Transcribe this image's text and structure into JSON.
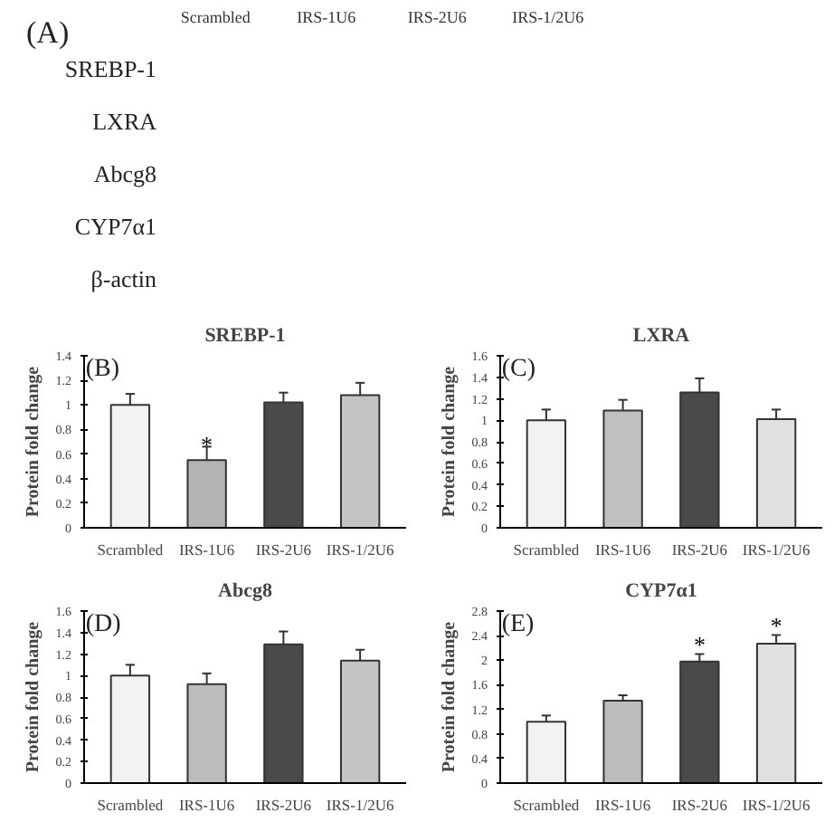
{
  "chart_data": [
    {
      "type": "other",
      "title": "(A)",
      "categories": [
        "Scrambled",
        "IRS-1U6",
        "IRS-2U6",
        "IRS-1/2U6"
      ],
      "y_categories": [
        "SREBP-1",
        "LXRA",
        "Abcg8",
        "CYP7α1",
        "β-actin"
      ]
    },
    {
      "type": "bar",
      "title": "SREBP-1",
      "annotations": [
        "(B)",
        {
          "text": "*",
          "x": "IRS-1U6",
          "y": 0.68
        }
      ],
      "ylabel": "Protein fold change",
      "categories": [
        "Scrambled",
        "IRS-1U6",
        "IRS-2U6",
        "IRS-1/2U6"
      ],
      "values": [
        1.0,
        0.55,
        1.02,
        1.08
      ],
      "errors": [
        [
          1.0,
          1.09
        ],
        [
          0.55,
          0.66
        ],
        [
          1.02,
          1.1
        ],
        [
          1.08,
          1.18
        ]
      ],
      "colors": [
        "#f2f2f2",
        "#b4b4b4",
        "#4a4a4a",
        "#c4c4c4"
      ],
      "ylim": [
        0,
        1.4
      ],
      "yticks": [
        0,
        0.2,
        0.4,
        0.6,
        0.8,
        1,
        1.2,
        1.4
      ],
      "grid": false,
      "legend": false
    },
    {
      "type": "bar",
      "title": "LXRA",
      "annotations": [
        "(C)"
      ],
      "ylabel": "Protein fold change",
      "categories": [
        "Scrambled",
        "IRS-1U6",
        "IRS-2U6",
        "IRS-1/2U6"
      ],
      "values": [
        1.0,
        1.09,
        1.26,
        1.01
      ],
      "errors": [
        [
          1.0,
          1.1
        ],
        [
          1.09,
          1.19
        ],
        [
          1.26,
          1.39
        ],
        [
          1.01,
          1.1
        ]
      ],
      "colors": [
        "#f2f2f2",
        "#c0c0c0",
        "#4a4a4a",
        "#e0e0e0"
      ],
      "ylim": [
        0,
        1.6
      ],
      "yticks": [
        0,
        0.2,
        0.4,
        0.6,
        0.8,
        1,
        1.2,
        1.4,
        1.6
      ],
      "grid": false,
      "legend": false
    },
    {
      "type": "bar",
      "title": "Abcg8",
      "annotations": [
        "(D)"
      ],
      "ylabel": "Protein fold change",
      "categories": [
        "Scrambled",
        "IRS-1U6",
        "IRS-2U6",
        "IRS-1/2U6"
      ],
      "values": [
        1.0,
        0.92,
        1.29,
        1.14
      ],
      "errors": [
        [
          1.0,
          1.1
        ],
        [
          0.92,
          1.02
        ],
        [
          1.29,
          1.41
        ],
        [
          1.14,
          1.24
        ]
      ],
      "colors": [
        "#f2f2f2",
        "#bcbcbc",
        "#4a4a4a",
        "#c4c4c4"
      ],
      "ylim": [
        0,
        1.6
      ],
      "yticks": [
        0,
        0.2,
        0.4,
        0.6,
        0.8,
        1,
        1.2,
        1.4,
        1.6
      ],
      "grid": false,
      "legend": false
    },
    {
      "type": "bar",
      "title": "CYP7α1",
      "annotations": [
        "(E)",
        {
          "text": "*",
          "x": "IRS-2U6",
          "y": 2.25
        },
        {
          "text": "*",
          "x": "IRS-1/2U6",
          "y": 2.56
        }
      ],
      "ylabel": "Protein fold change",
      "categories": [
        "Scrambled",
        "IRS-1U6",
        "IRS-2U6",
        "IRS-1/2U6"
      ],
      "values": [
        1.0,
        1.34,
        1.98,
        2.27
      ],
      "errors": [
        [
          1.0,
          1.1
        ],
        [
          1.34,
          1.43
        ],
        [
          1.98,
          2.1
        ],
        [
          2.27,
          2.41
        ]
      ],
      "colors": [
        "#f2f2f2",
        "#bcbcbc",
        "#4a4a4a",
        "#e0e0e0"
      ],
      "ylim": [
        0,
        2.8
      ],
      "yticks": [
        0,
        0.4,
        0.8,
        1.2,
        1.6,
        2,
        2.4,
        2.8
      ],
      "grid": false,
      "legend": false
    }
  ]
}
